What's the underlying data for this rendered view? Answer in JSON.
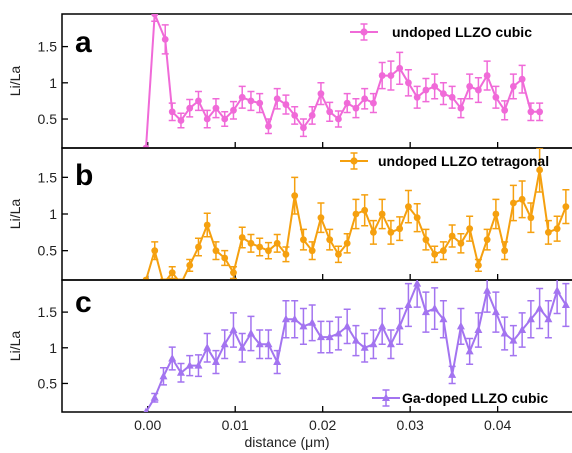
{
  "chart_data": {
    "type": "line",
    "xlabel": "distance (μm)",
    "x_ticks": [
      "0.00",
      "0.01",
      "0.02",
      "0.03",
      "0.04"
    ],
    "x_tick_values": [
      0.0,
      0.01,
      0.02,
      0.03,
      0.04
    ],
    "xlim": [
      -0.0098,
      0.0485
    ],
    "panels": [
      {
        "letter": "a",
        "ylabel": "Li/La",
        "ylim": [
          0.1,
          1.95
        ],
        "y_ticks": [
          "0.5",
          "1",
          "1.5"
        ],
        "y_tick_values": [
          0.5,
          1.0,
          1.5
        ],
        "series": {
          "name": "undoped LLZO cubic",
          "color": "#f06ad8",
          "marker": "circle",
          "x": [
            -0.0002,
            0.0008,
            0.002,
            0.0028,
            0.0038,
            0.0048,
            0.0058,
            0.0068,
            0.0078,
            0.0088,
            0.0098,
            0.0108,
            0.0118,
            0.0128,
            0.0138,
            0.0148,
            0.0158,
            0.0168,
            0.0178,
            0.0188,
            0.0198,
            0.0208,
            0.0218,
            0.0228,
            0.0238,
            0.0248,
            0.0258,
            0.0268,
            0.0278,
            0.0288,
            0.0298,
            0.0308,
            0.0318,
            0.0328,
            0.0338,
            0.0348,
            0.0358,
            0.0368,
            0.0378,
            0.0388,
            0.0398,
            0.0408,
            0.0418,
            0.0428,
            0.0438,
            0.0448
          ],
          "y": [
            0.1,
            1.95,
            1.6,
            0.6,
            0.48,
            0.65,
            0.75,
            0.5,
            0.65,
            0.5,
            0.62,
            0.8,
            0.75,
            0.72,
            0.4,
            0.78,
            0.7,
            0.55,
            0.38,
            0.55,
            0.85,
            0.6,
            0.5,
            0.72,
            0.65,
            0.78,
            0.72,
            1.1,
            1.1,
            1.2,
            1.0,
            0.8,
            0.9,
            0.95,
            0.85,
            0.8,
            0.65,
            0.95,
            0.9,
            1.1,
            0.8,
            0.62,
            0.95,
            1.05,
            0.6,
            0.6
          ],
          "err": [
            0,
            0.1,
            0.2,
            0.12,
            0.1,
            0.12,
            0.13,
            0.12,
            0.13,
            0.1,
            0.12,
            0.15,
            0.13,
            0.13,
            0.1,
            0.14,
            0.13,
            0.12,
            0.12,
            0.12,
            0.15,
            0.13,
            0.11,
            0.13,
            0.13,
            0.14,
            0.13,
            0.18,
            0.2,
            0.22,
            0.18,
            0.15,
            0.16,
            0.17,
            0.15,
            0.15,
            0.13,
            0.17,
            0.17,
            0.2,
            0.15,
            0.13,
            0.17,
            0.19,
            0.12,
            0.12
          ]
        }
      },
      {
        "letter": "b",
        "ylabel": "Li/La",
        "ylim": [
          0.1,
          1.9
        ],
        "y_ticks": [
          "0.5",
          "1",
          "1.5"
        ],
        "y_tick_values": [
          0.5,
          1.0,
          1.5
        ],
        "series": {
          "name": "undoped LLZO tetragonal",
          "color": "#f5a00f",
          "marker": "circle",
          "x": [
            -0.0002,
            0.0008,
            0.0018,
            0.0028,
            0.0038,
            0.0048,
            0.0058,
            0.0068,
            0.0078,
            0.0088,
            0.0098,
            0.0108,
            0.0118,
            0.0128,
            0.0138,
            0.0148,
            0.0158,
            0.0168,
            0.0178,
            0.0188,
            0.0198,
            0.0208,
            0.0218,
            0.0228,
            0.0238,
            0.0248,
            0.0258,
            0.0268,
            0.0278,
            0.0288,
            0.0298,
            0.0308,
            0.0318,
            0.0328,
            0.0338,
            0.0348,
            0.0358,
            0.0368,
            0.0378,
            0.0388,
            0.0398,
            0.0408,
            0.0418,
            0.0428,
            0.0438,
            0.0448,
            0.0458,
            0.0468,
            0.0478
          ],
          "y": [
            0.1,
            0.5,
            0.05,
            0.2,
            0.05,
            0.3,
            0.55,
            0.85,
            0.5,
            0.4,
            0.2,
            0.68,
            0.6,
            0.55,
            0.5,
            0.6,
            0.45,
            1.25,
            0.65,
            0.5,
            0.95,
            0.65,
            0.45,
            0.6,
            1.0,
            1.05,
            0.75,
            1.0,
            0.75,
            0.8,
            1.1,
            0.95,
            0.65,
            0.45,
            0.5,
            0.7,
            0.6,
            0.8,
            0.3,
            0.65,
            1.0,
            0.5,
            1.15,
            1.2,
            0.95,
            1.6,
            0.75,
            0.8,
            1.1
          ],
          "err": [
            0,
            0.12,
            0.06,
            0.08,
            0.06,
            0.08,
            0.12,
            0.16,
            0.12,
            0.1,
            0.08,
            0.14,
            0.12,
            0.12,
            0.11,
            0.12,
            0.1,
            0.25,
            0.14,
            0.12,
            0.2,
            0.14,
            0.11,
            0.13,
            0.2,
            0.21,
            0.16,
            0.2,
            0.16,
            0.16,
            0.22,
            0.19,
            0.14,
            0.11,
            0.12,
            0.15,
            0.13,
            0.17,
            0.08,
            0.14,
            0.2,
            0.12,
            0.24,
            0.25,
            0.2,
            0.3,
            0.16,
            0.17,
            0.23
          ]
        }
      },
      {
        "letter": "c",
        "ylabel": "Li/La",
        "ylim": [
          0.1,
          1.95
        ],
        "y_ticks": [
          "0.5",
          "1",
          "1.5"
        ],
        "y_tick_values": [
          0.5,
          1.0,
          1.5
        ],
        "series": {
          "name": "Ga-doped LLZO cubic",
          "color": "#a374f0",
          "marker": "triangle",
          "x": [
            -0.0002,
            0.0008,
            0.0018,
            0.0028,
            0.0038,
            0.0048,
            0.0058,
            0.0068,
            0.0078,
            0.0088,
            0.0098,
            0.0108,
            0.0118,
            0.0128,
            0.0138,
            0.0148,
            0.0158,
            0.0168,
            0.0178,
            0.0188,
            0.0198,
            0.0208,
            0.0218,
            0.0228,
            0.0238,
            0.0248,
            0.0258,
            0.0268,
            0.0278,
            0.0288,
            0.0298,
            0.0308,
            0.0318,
            0.0328,
            0.0338,
            0.0348,
            0.0358,
            0.0368,
            0.0378,
            0.0388,
            0.0398,
            0.0408,
            0.0418,
            0.0428,
            0.0438,
            0.0448,
            0.0458,
            0.0468,
            0.0478
          ],
          "y": [
            0.1,
            0.3,
            0.6,
            0.85,
            0.65,
            0.75,
            0.75,
            1.0,
            0.8,
            1.05,
            1.25,
            1.0,
            1.2,
            1.05,
            1.05,
            0.8,
            1.4,
            1.4,
            1.3,
            1.35,
            1.15,
            1.15,
            1.2,
            1.3,
            1.1,
            1.0,
            1.05,
            1.3,
            1.05,
            1.3,
            1.6,
            1.9,
            1.5,
            1.55,
            1.4,
            0.62,
            1.3,
            0.95,
            1.25,
            1.8,
            1.5,
            1.2,
            1.1,
            1.25,
            1.4,
            1.55,
            1.4,
            1.8,
            1.6
          ],
          "err": [
            0,
            0.06,
            0.12,
            0.16,
            0.13,
            0.14,
            0.15,
            0.2,
            0.16,
            0.2,
            0.24,
            0.2,
            0.24,
            0.2,
            0.2,
            0.16,
            0.26,
            0.26,
            0.25,
            0.25,
            0.22,
            0.22,
            0.23,
            0.24,
            0.21,
            0.2,
            0.2,
            0.25,
            0.2,
            0.25,
            0.3,
            0.33,
            0.28,
            0.29,
            0.26,
            0.12,
            0.25,
            0.18,
            0.24,
            0.3,
            0.28,
            0.23,
            0.21,
            0.24,
            0.26,
            0.28,
            0.26,
            0.32,
            0.3
          ]
        }
      }
    ]
  }
}
